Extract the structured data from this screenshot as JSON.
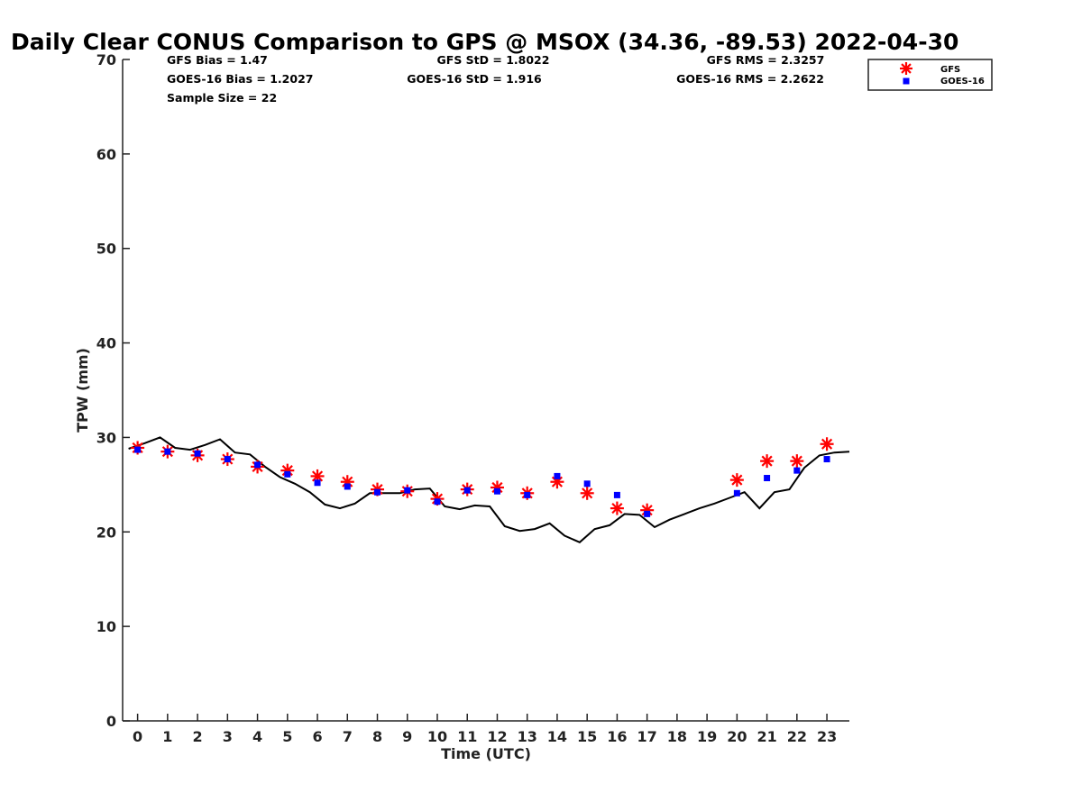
{
  "chart_data": {
    "type": "scatter",
    "title": "Daily Clear CONUS Comparison to GPS @ MSOX (34.36, -89.53) 2022-04-30",
    "xlabel": "Time (UTC)",
    "ylabel": "TPW (mm)",
    "xlim": [
      -0.5,
      23.75
    ],
    "ylim": [
      0,
      70
    ],
    "x_ticks": [
      0,
      1,
      2,
      3,
      4,
      5,
      6,
      7,
      8,
      9,
      10,
      11,
      12,
      13,
      14,
      15,
      16,
      17,
      18,
      19,
      20,
      21,
      22,
      23
    ],
    "y_ticks": [
      0,
      10,
      20,
      30,
      40,
      50,
      60,
      70
    ],
    "grid": false,
    "legend_position": "top-right",
    "stats": [
      {
        "key": "gfs_bias",
        "text": "GFS Bias = 1.47"
      },
      {
        "key": "gfs_std",
        "text": "GFS StD = 1.8022"
      },
      {
        "key": "gfs_rms",
        "text": "GFS RMS = 2.3257"
      },
      {
        "key": "goes_bias",
        "text": "GOES-16 Bias = 1.2027"
      },
      {
        "key": "goes_std",
        "text": "GOES-16 StD = 1.916"
      },
      {
        "key": "goes_rms",
        "text": "GOES-16 RMS = 2.2622"
      },
      {
        "key": "sample",
        "text": "Sample Size = 22"
      }
    ],
    "series": [
      {
        "name": "GFS",
        "marker": "asterisk",
        "color": "#ff0000",
        "points": [
          [
            0,
            28.9
          ],
          [
            1,
            28.5
          ],
          [
            2,
            28.1
          ],
          [
            3,
            27.7
          ],
          [
            4,
            26.9
          ],
          [
            5,
            26.5
          ],
          [
            6,
            25.9
          ],
          [
            7,
            25.3
          ],
          [
            8,
            24.5
          ],
          [
            9,
            24.3
          ],
          [
            10,
            23.5
          ],
          [
            11,
            24.5
          ],
          [
            12,
            24.7
          ],
          [
            13,
            24.1
          ],
          [
            14,
            25.3
          ],
          [
            15,
            24.1
          ],
          [
            16,
            22.5
          ],
          [
            17,
            22.3
          ],
          [
            20,
            25.5
          ],
          [
            21,
            27.5
          ],
          [
            22,
            27.5
          ],
          [
            23,
            29.3
          ]
        ]
      },
      {
        "name": "GOES-16",
        "marker": "square",
        "color": "#0000ff",
        "points": [
          [
            0,
            28.7
          ],
          [
            1,
            28.5
          ],
          [
            2,
            28.3
          ],
          [
            3,
            27.7
          ],
          [
            4,
            27.1
          ],
          [
            5,
            26.1
          ],
          [
            6,
            25.2
          ],
          [
            7,
            24.8
          ],
          [
            8,
            24.2
          ],
          [
            9,
            24.4
          ],
          [
            10,
            23.2
          ],
          [
            11,
            24.4
          ],
          [
            12,
            24.3
          ],
          [
            13,
            23.9
          ],
          [
            14,
            25.9
          ],
          [
            15,
            25.1
          ],
          [
            16,
            23.9
          ],
          [
            17,
            21.9
          ],
          [
            20,
            24.1
          ],
          [
            21,
            25.7
          ],
          [
            22,
            26.5
          ],
          [
            23,
            27.7
          ]
        ]
      },
      {
        "name": "",
        "marker": "line",
        "color": "#000000",
        "points": [
          [
            -0.3,
            28.8
          ],
          [
            0.25,
            29.4
          ],
          [
            0.75,
            30.0
          ],
          [
            1.25,
            28.9
          ],
          [
            1.75,
            28.7
          ],
          [
            2.25,
            29.2
          ],
          [
            2.75,
            29.8
          ],
          [
            3.25,
            28.4
          ],
          [
            3.75,
            28.2
          ],
          [
            4.25,
            26.9
          ],
          [
            4.75,
            25.8
          ],
          [
            5.25,
            25.1
          ],
          [
            5.75,
            24.2
          ],
          [
            6.25,
            22.9
          ],
          [
            6.75,
            22.5
          ],
          [
            7.25,
            23.0
          ],
          [
            7.75,
            24.1
          ],
          [
            8.25,
            24.1
          ],
          [
            8.75,
            24.1
          ],
          [
            9.25,
            24.5
          ],
          [
            9.75,
            24.6
          ],
          [
            10.25,
            22.7
          ],
          [
            10.75,
            22.4
          ],
          [
            11.25,
            22.8
          ],
          [
            11.75,
            22.7
          ],
          [
            12.25,
            20.6
          ],
          [
            12.75,
            20.1
          ],
          [
            13.25,
            20.3
          ],
          [
            13.75,
            20.9
          ],
          [
            14.25,
            19.6
          ],
          [
            14.75,
            18.9
          ],
          [
            15.25,
            20.3
          ],
          [
            15.75,
            20.7
          ],
          [
            16.25,
            21.9
          ],
          [
            16.75,
            21.8
          ],
          [
            17.25,
            20.5
          ],
          [
            17.75,
            21.3
          ],
          [
            18.25,
            21.9
          ],
          [
            18.75,
            22.5
          ],
          [
            19.25,
            23.0
          ],
          [
            19.75,
            23.6
          ],
          [
            20.25,
            24.2
          ],
          [
            20.75,
            22.5
          ],
          [
            21.25,
            24.2
          ],
          [
            21.75,
            24.5
          ],
          [
            22.25,
            26.8
          ],
          [
            22.75,
            28.1
          ],
          [
            23.25,
            28.4
          ],
          [
            23.75,
            28.5
          ]
        ]
      }
    ]
  }
}
